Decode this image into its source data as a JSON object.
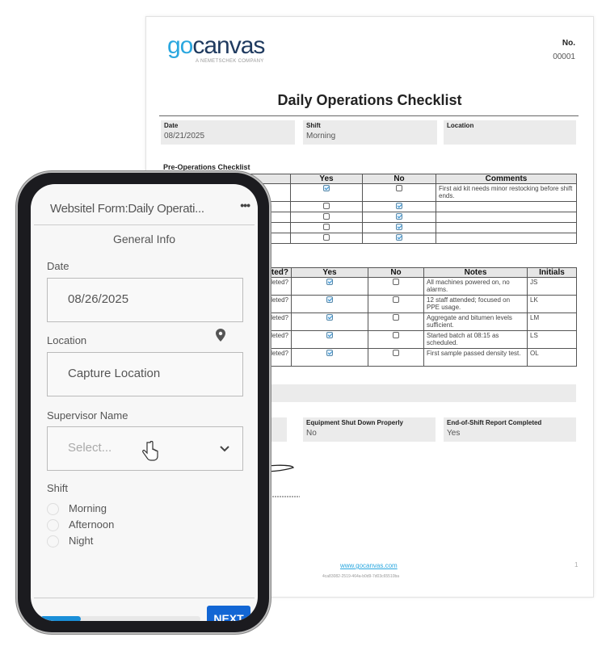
{
  "document": {
    "logo": {
      "go": "go",
      "canvas": "canvas",
      "tagline": "A NEMETSCHEK COMPANY"
    },
    "number_label": "No.",
    "number": "00001",
    "title": "Daily Operations Checklist",
    "header_fields": [
      {
        "label": "Date",
        "value": "08/21/2025"
      },
      {
        "label": "Shift",
        "value": "Morning"
      },
      {
        "label": "Location",
        "value": ""
      }
    ],
    "pre_ops": {
      "title": "Pre-Operations Checklist",
      "columns": [
        "",
        "Yes",
        "No",
        "Comments"
      ],
      "rows": [
        {
          "yes": true,
          "no": false,
          "comment": "First aid kit needs minor restocking before shift ends."
        },
        {
          "yes": false,
          "no": true,
          "comment": ""
        },
        {
          "yes": false,
          "no": true,
          "comment": ""
        },
        {
          "yes": false,
          "no": true,
          "comment": ""
        },
        {
          "yes": false,
          "no": true,
          "comment": ""
        }
      ]
    },
    "ops": {
      "columns": [
        "ompleted?",
        "Yes",
        "No",
        "Notes",
        "Initials"
      ],
      "rows": [
        {
          "item": "mpleted?",
          "yes": true,
          "no": false,
          "note": "All machines powered on, no alarms.",
          "initials": "JS"
        },
        {
          "item": "mpleted?",
          "yes": true,
          "no": false,
          "note": "12 staff attended; focused on PPE usage.",
          "initials": "LK"
        },
        {
          "item": "mpleted?",
          "yes": true,
          "no": false,
          "note": "Aggregate and bitumen levels sufficient.",
          "initials": "LM"
        },
        {
          "item": "mpleted?",
          "yes": true,
          "no": false,
          "note": "Started batch at 08:15 as scheduled.",
          "initials": "LS"
        },
        {
          "item": "mpleted?",
          "yes": true,
          "no": false,
          "note": "First sample passed density test.",
          "initials": "OL"
        }
      ]
    },
    "end_fields": [
      {
        "label": "Equipment Shut Down Properly",
        "value": "No"
      },
      {
        "label": "End-of-Shift Report Completed",
        "value": "Yes"
      }
    ],
    "footer": {
      "link": "www.gocanvas.com",
      "hash": "4ca83082-2519-464a-b0d9-7d03c65510ba",
      "page": "1"
    }
  },
  "phone": {
    "title": "Websitel Form:Daily Operati...",
    "more_icon": "ellipsis-icon",
    "section": "General Info",
    "date_label": "Date",
    "date_value": "08/26/2025",
    "location_label": "Location",
    "location_icon": "map-pin-icon",
    "location_value": "Capture Location",
    "supervisor_label": "Supervisor Name",
    "supervisor_placeholder": "Select...",
    "shift_label": "Shift",
    "shift_options": [
      "Morning",
      "Afternoon",
      "Night"
    ],
    "progress_percent": 25,
    "next_label": "NEXT",
    "accent": "#1266d4"
  }
}
